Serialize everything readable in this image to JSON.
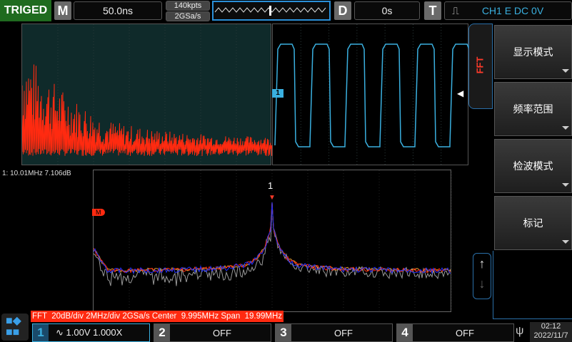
{
  "top": {
    "trig_status": "TRIGED",
    "m_label": "M",
    "timebase": "50.0ns",
    "memory_depth": "140kpts",
    "sample_rate": "2GSa/s",
    "d_label": "D",
    "delay": "0s",
    "t_label": "T",
    "trigger": "CH1 E DC 0V"
  },
  "fft_tab": "FFT",
  "menu": [
    {
      "label": "显示模式"
    },
    {
      "label": "频率范围"
    },
    {
      "label": "检波模式"
    },
    {
      "label": "标记"
    }
  ],
  "marker": {
    "readout": "1: 10.01MHz 7.106dB",
    "label": "1",
    "m_tag": "M"
  },
  "fft_info": "FFT  20dB/div 2MHz/div 2GSa/s Center  9.995MHz Span  19.99MHz",
  "channels": [
    {
      "num": "1",
      "value": "1.00V 1.000X"
    },
    {
      "num": "2",
      "value": "OFF"
    },
    {
      "num": "3",
      "value": "OFF"
    },
    {
      "num": "4",
      "value": "OFF"
    }
  ],
  "clock": {
    "time": "02:12",
    "date": "2022/11/7"
  },
  "colors": {
    "ch1": "#3ab0e0",
    "fft": "#ff2a10",
    "trig_bg": "#1f6b1f"
  }
}
